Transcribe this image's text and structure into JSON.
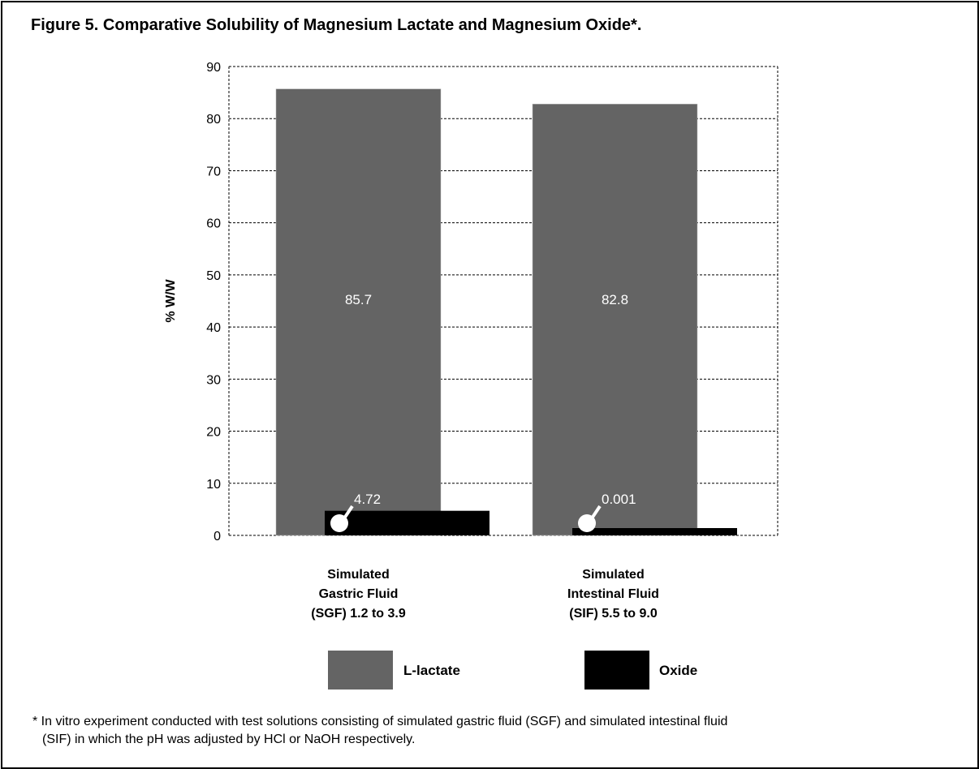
{
  "title": "Figure 5. Comparative Solubility of Magnesium Lactate and Magnesium Oxide*.",
  "footnote": {
    "line1": "* In vitro experiment conducted with test solutions consisting of simulated gastric fluid (SGF) and simulated intestinal fluid",
    "line2": "(SIF) in which the pH was adjusted by HCl or NaOH respectively."
  },
  "chart_data": {
    "type": "bar",
    "ylabel": "% W/W",
    "xlabel": "",
    "ylim": [
      0,
      90
    ],
    "yticks": [
      0,
      10,
      20,
      30,
      40,
      50,
      60,
      70,
      80,
      90
    ],
    "grid": true,
    "legend_placement": "bottom",
    "categories": [
      [
        "Simulated",
        "Gastric Fluid",
        "(SGF) 1.2 to 3.9"
      ],
      [
        "Simulated",
        "Intestinal Fluid",
        "(SIF) 5.5 to 9.0"
      ]
    ],
    "series": [
      {
        "name": "L-lactate",
        "color": "#646464",
        "values": [
          85.7,
          82.8
        ],
        "labels": [
          "85.7",
          "82.8"
        ]
      },
      {
        "name": "Oxide",
        "color": "#000000",
        "values": [
          4.72,
          0.001
        ],
        "labels": [
          "4.72",
          "0.001"
        ]
      }
    ]
  }
}
